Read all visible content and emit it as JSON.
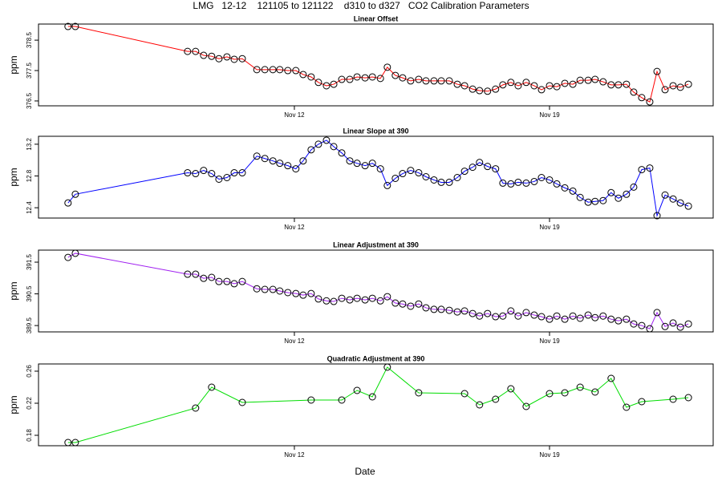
{
  "title": "LMG   12-12    121105 to 121122    d310 to d327   CO2 Calibration Parameters",
  "xlabel": "Date",
  "chart_data": [
    {
      "type": "line",
      "title": "Linear Offset",
      "ylabel": "ppm",
      "color": "#ff0000",
      "x": [
        5.79,
        5.99,
        9.07,
        9.29,
        9.51,
        9.73,
        9.93,
        10.15,
        10.35,
        10.57,
        10.97,
        11.19,
        11.41,
        11.6,
        11.82,
        12.04,
        12.24,
        12.46,
        12.66,
        12.88,
        13.08,
        13.3,
        13.52,
        13.72,
        13.94,
        14.14,
        14.36,
        14.55,
        14.77,
        14.97,
        15.19,
        15.41,
        15.61,
        15.83,
        16.03,
        16.25,
        16.47,
        16.67,
        16.89,
        17.08,
        17.3,
        17.52,
        17.72,
        17.94,
        18.14,
        18.36,
        18.58,
        18.78,
        19.0,
        19.2,
        19.42,
        19.64,
        19.84,
        20.06,
        20.25,
        20.47,
        20.69,
        20.89,
        21.11,
        21.31,
        21.53,
        21.75,
        21.95,
        22.17,
        22.39,
        22.59,
        22.81
      ],
      "values": [
        378.95,
        378.95,
        378.13,
        378.13,
        378.0,
        377.97,
        377.89,
        377.95,
        377.87,
        377.89,
        377.53,
        377.53,
        377.53,
        377.53,
        377.5,
        377.5,
        377.37,
        377.29,
        377.11,
        377.0,
        377.05,
        377.21,
        377.21,
        377.29,
        377.26,
        377.29,
        377.24,
        377.61,
        377.34,
        377.26,
        377.16,
        377.21,
        377.16,
        377.16,
        377.16,
        377.16,
        377.05,
        377.0,
        376.89,
        376.84,
        376.82,
        376.89,
        377.03,
        377.11,
        377.0,
        377.11,
        377.0,
        376.87,
        377.0,
        376.97,
        377.08,
        377.05,
        377.18,
        377.18,
        377.21,
        377.13,
        377.03,
        377.03,
        377.05,
        376.79,
        376.61,
        376.47,
        377.47,
        376.87,
        377.0,
        376.95,
        377.05
      ],
      "xlim": [
        4.98,
        23.49
      ],
      "xticks": [
        {
          "value": 12,
          "label": "Nov 12"
        },
        {
          "value": 19,
          "label": "Nov 19"
        }
      ],
      "ylim": [
        376.34,
        379.03
      ],
      "yticks": [
        376.5,
        377.5,
        378.5
      ]
    },
    {
      "type": "line",
      "title": "Linear Slope at 390",
      "ylabel": "ppm",
      "color": "#0000ff",
      "x": [
        5.79,
        5.99,
        9.07,
        9.29,
        9.51,
        9.73,
        9.93,
        10.15,
        10.35,
        10.57,
        10.97,
        11.19,
        11.41,
        11.6,
        11.82,
        12.04,
        12.24,
        12.46,
        12.66,
        12.88,
        13.08,
        13.3,
        13.52,
        13.72,
        13.94,
        14.14,
        14.36,
        14.55,
        14.77,
        14.97,
        15.19,
        15.41,
        15.61,
        15.83,
        16.03,
        16.25,
        16.47,
        16.67,
        16.89,
        17.08,
        17.3,
        17.52,
        17.72,
        17.94,
        18.14,
        18.36,
        18.58,
        18.78,
        19.0,
        19.2,
        19.42,
        19.64,
        19.84,
        20.06,
        20.25,
        20.47,
        20.69,
        20.89,
        21.11,
        21.31,
        21.53,
        21.75,
        21.95,
        22.17,
        22.39,
        22.59,
        22.81
      ],
      "values": [
        12.46,
        12.57,
        12.84,
        12.83,
        12.87,
        12.83,
        12.76,
        12.78,
        12.84,
        12.84,
        13.05,
        13.02,
        12.99,
        12.96,
        12.93,
        12.89,
        12.99,
        13.13,
        13.2,
        13.25,
        13.17,
        13.09,
        12.99,
        12.96,
        12.93,
        12.96,
        12.89,
        12.68,
        12.77,
        12.83,
        12.87,
        12.84,
        12.79,
        12.75,
        12.72,
        12.72,
        12.78,
        12.86,
        12.91,
        12.97,
        12.92,
        12.89,
        12.71,
        12.7,
        12.72,
        12.71,
        12.73,
        12.78,
        12.75,
        12.7,
        12.65,
        12.61,
        12.53,
        12.47,
        12.48,
        12.49,
        12.59,
        12.52,
        12.57,
        12.66,
        12.88,
        12.9,
        12.3,
        12.56,
        12.51,
        12.46,
        12.42
      ],
      "xlim": [
        4.98,
        23.49
      ],
      "xticks": [
        {
          "value": 12,
          "label": "Nov 12"
        },
        {
          "value": 19,
          "label": "Nov 19"
        }
      ],
      "ylim": [
        12.27,
        13.3
      ],
      "yticks": [
        12.4,
        12.8,
        13.2
      ]
    },
    {
      "type": "line",
      "title": "Linear Adjustment at 390",
      "ylabel": "ppm",
      "color": "#a020f0",
      "x": [
        5.79,
        5.99,
        9.07,
        9.29,
        9.51,
        9.73,
        9.93,
        10.15,
        10.35,
        10.57,
        10.97,
        11.19,
        11.41,
        11.6,
        11.82,
        12.04,
        12.24,
        12.46,
        12.66,
        12.88,
        13.08,
        13.3,
        13.52,
        13.72,
        13.94,
        14.14,
        14.36,
        14.55,
        14.77,
        14.97,
        15.19,
        15.41,
        15.61,
        15.83,
        16.03,
        16.25,
        16.47,
        16.67,
        16.89,
        17.08,
        17.3,
        17.52,
        17.72,
        17.94,
        18.14,
        18.36,
        18.58,
        18.78,
        19.0,
        19.2,
        19.42,
        19.64,
        19.84,
        20.06,
        20.25,
        20.47,
        20.69,
        20.89,
        21.11,
        21.31,
        21.53,
        21.75,
        21.95,
        22.17,
        22.39,
        22.59,
        22.81
      ],
      "values": [
        391.65,
        391.78,
        391.12,
        391.12,
        390.99,
        391.02,
        390.89,
        390.89,
        390.82,
        390.89,
        390.66,
        390.64,
        390.64,
        390.59,
        390.54,
        390.51,
        390.46,
        390.51,
        390.34,
        390.28,
        390.26,
        390.36,
        390.31,
        390.36,
        390.31,
        390.36,
        390.28,
        390.41,
        390.21,
        390.18,
        390.11,
        390.18,
        390.06,
        390.01,
        390.01,
        389.98,
        389.93,
        389.96,
        389.88,
        389.8,
        389.88,
        389.78,
        389.8,
        389.96,
        389.8,
        389.91,
        389.83,
        389.78,
        389.7,
        389.8,
        389.7,
        389.8,
        389.73,
        389.83,
        389.75,
        389.8,
        389.7,
        389.65,
        389.7,
        389.55,
        389.5,
        389.4,
        389.91,
        389.47,
        389.58,
        389.45,
        389.55
      ],
      "xlim": [
        4.98,
        23.49
      ],
      "xticks": [
        {
          "value": 12,
          "label": "Nov 12"
        },
        {
          "value": 19,
          "label": "Nov 19"
        }
      ],
      "ylim": [
        389.3,
        391.88
      ],
      "yticks": [
        389.5,
        390.5,
        391.5
      ]
    },
    {
      "type": "line",
      "title": "Quadratic Adjustment at 390",
      "ylabel": "ppm",
      "color": "#00dd00",
      "x": [
        5.79,
        5.99,
        9.29,
        9.73,
        10.57,
        12.46,
        13.3,
        13.72,
        14.14,
        14.55,
        15.41,
        16.67,
        17.08,
        17.52,
        17.94,
        18.36,
        19.0,
        19.42,
        19.84,
        20.25,
        20.69,
        21.11,
        21.53,
        22.39,
        22.81
      ],
      "values": [
        0.171,
        0.171,
        0.214,
        0.24,
        0.221,
        0.224,
        0.224,
        0.236,
        0.228,
        0.265,
        0.233,
        0.232,
        0.218,
        0.225,
        0.238,
        0.216,
        0.232,
        0.233,
        0.24,
        0.234,
        0.251,
        0.215,
        0.222,
        0.225,
        0.227
      ],
      "xlim": [
        4.98,
        23.49
      ],
      "xticks": [
        {
          "value": 12,
          "label": "Nov 12"
        },
        {
          "value": 19,
          "label": "Nov 19"
        }
      ],
      "ylim": [
        0.167,
        0.269
      ],
      "yticks": [
        0.18,
        0.22,
        0.26
      ]
    }
  ]
}
